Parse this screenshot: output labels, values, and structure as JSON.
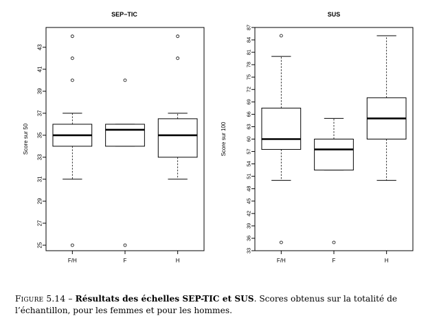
{
  "caption": {
    "label": "Figure 5.14 –",
    "title": "Résultats des échelles SEP-TIC et SUS",
    "text": ". Scores obtenus sur la totalité de l’échantillon, pour les femmes et pour les hommes."
  },
  "chart_data": [
    {
      "type": "box",
      "title": "SEP−TIC",
      "ylabel": "Score sur 50",
      "ylim": [
        24.5,
        44.8
      ],
      "yticks": [
        25,
        27,
        29,
        31,
        33,
        35,
        37,
        39,
        41,
        43
      ],
      "categories": [
        "F/H",
        "F",
        "H"
      ],
      "boxes": [
        {
          "category": "F/H",
          "whisker_low": 31,
          "q1": 34,
          "median": 35,
          "q3": 36,
          "whisker_high": 37,
          "outliers": [
            25,
            40,
            42,
            44
          ]
        },
        {
          "category": "F",
          "whisker_low": 34,
          "q1": 34,
          "median": 35.5,
          "q3": 36,
          "whisker_high": 36,
          "outliers": [
            25,
            40
          ]
        },
        {
          "category": "H",
          "whisker_low": 31,
          "q1": 33,
          "median": 35,
          "q3": 36.5,
          "whisker_high": 37,
          "outliers": [
            42,
            44
          ]
        }
      ]
    },
    {
      "type": "box",
      "title": "SUS",
      "ylabel": "Score sur 100",
      "ylim": [
        33,
        87
      ],
      "yticks": [
        33,
        36,
        39,
        42,
        45,
        48,
        51,
        54,
        57,
        60,
        63,
        66,
        69,
        72,
        75,
        78,
        81,
        84,
        87
      ],
      "categories": [
        "F/H",
        "F",
        "H"
      ],
      "boxes": [
        {
          "category": "F/H",
          "whisker_low": 50,
          "q1": 57.5,
          "median": 60,
          "q3": 67.5,
          "whisker_high": 80,
          "outliers": [
            35,
            85
          ]
        },
        {
          "category": "F",
          "whisker_low": 52.5,
          "q1": 52.5,
          "median": 57.5,
          "q3": 60,
          "whisker_high": 65,
          "outliers": [
            35
          ]
        },
        {
          "category": "H",
          "whisker_low": 50,
          "q1": 60,
          "median": 65,
          "q3": 70,
          "whisker_high": 85,
          "outliers": []
        }
      ]
    }
  ]
}
